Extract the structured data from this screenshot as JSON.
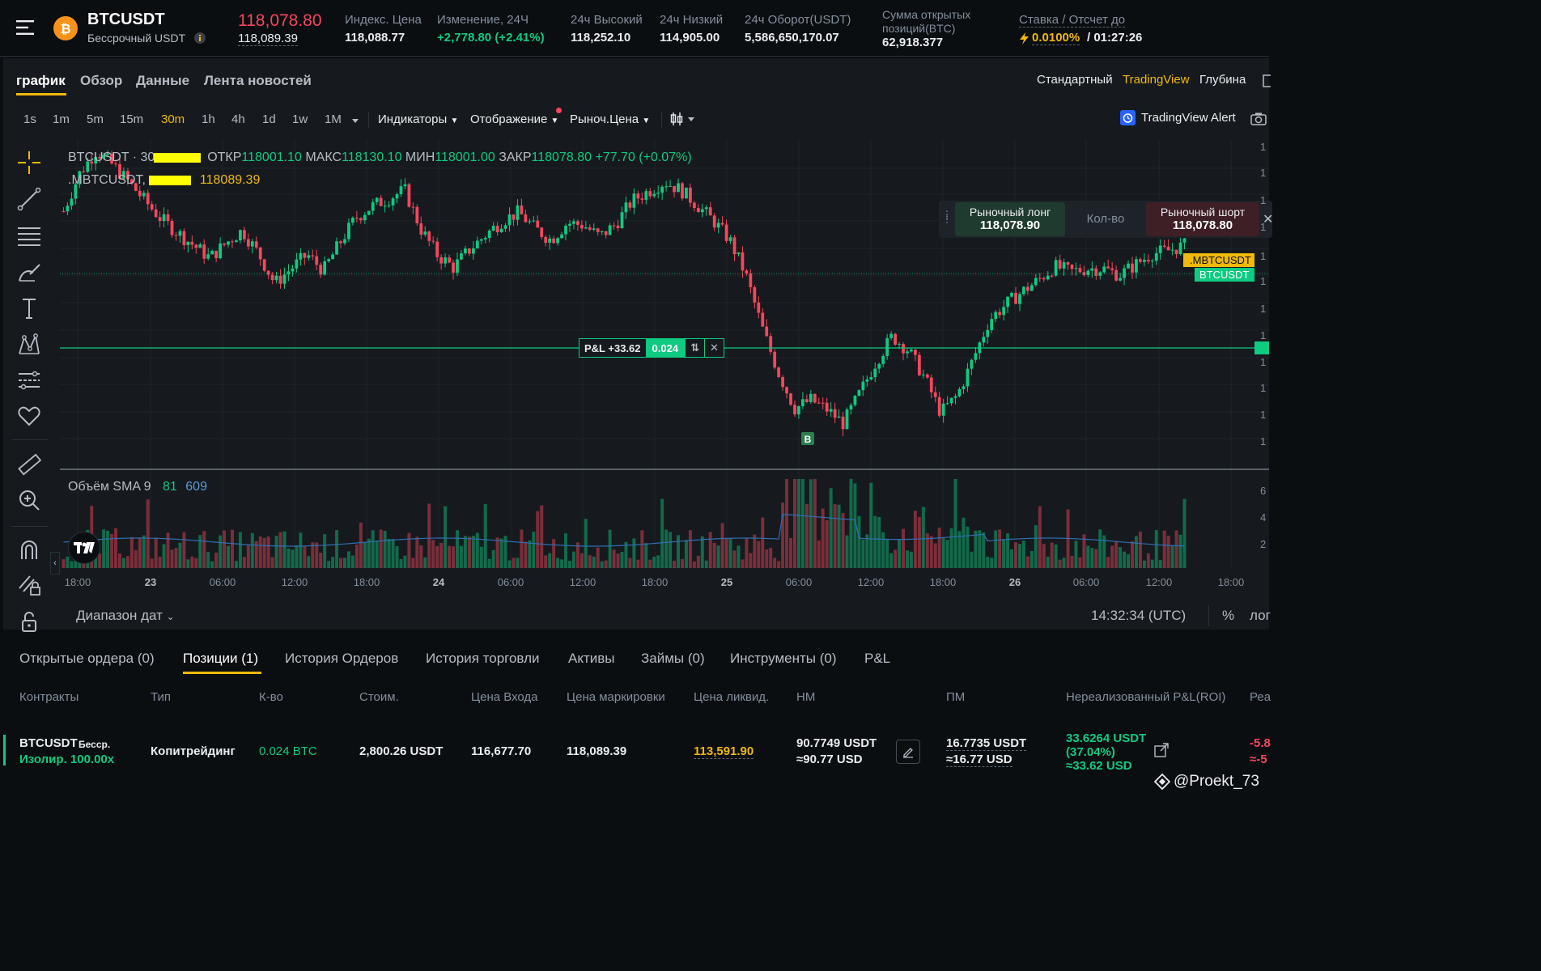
{
  "header": {
    "symbol": "BTCUSDT",
    "subtitle": "Бессрочный USDT",
    "info_icon": "info-icon",
    "last_price": "118,078.80",
    "mark_price": "118,089.39",
    "index_label": "Индекс. Цена",
    "index_value": "118,088.77",
    "change_label": "Изменение, 24Ч",
    "change_value": "+2,778.80 (+2.41%)",
    "high_label": "24ч Высокий",
    "high_value": "118,252.10",
    "low_label": "24ч Низкий",
    "low_value": "114,905.00",
    "turnover_label": "24ч Оборот(USDT)",
    "turnover_value": "5,586,650,170.07",
    "oi_label_1": "Сумма открытых",
    "oi_label_2": "позиций(BTC)",
    "oi_value": "62,918.377",
    "funding_label": "Ставка / Отсчет до",
    "funding_rate": "0.0100%",
    "funding_countdown": "/ 01:27:26"
  },
  "chart_tabs": [
    "график",
    "Обзор",
    "Данные",
    "Лента новостей"
  ],
  "views": [
    "Стандартный",
    "TradingView",
    "Глубина"
  ],
  "timeframes": [
    "1s",
    "1m",
    "5m",
    "15m",
    "30m",
    "1h",
    "4h",
    "1d",
    "1w",
    "1M"
  ],
  "toolbar": {
    "indicators": "Индикаторы",
    "display": "Отображение",
    "market_price": "Рыноч.Цена",
    "tv_alert": "TradingView Alert"
  },
  "legend": {
    "symbol": "BTCUSDT · 30",
    "open_label": "ОТКР",
    "open": "118001.10",
    "high_label": "МАКС",
    "high": "118130.10",
    "low_label": "МИН",
    "low": "118001.00",
    "close_label": "ЗАКР",
    "close": "118078.80",
    "change": "+77.70 (+0.07%)",
    "mark_symbol": ".MBTCUSDT,",
    "mark_value": "118089.39",
    "volume_label": "Объём SMA 9",
    "volume_value": "81",
    "volume_sma": "609"
  },
  "trade_widget": {
    "long_label": "Рыночный лонг",
    "long_price": "118,078.90",
    "qty_label": "Кол-во",
    "short_label": "Рыночный шорт",
    "short_price": "118,078.80"
  },
  "price_tags": {
    "mark": ".MBTCUSDT",
    "last": "BTCUSDT"
  },
  "position_line": {
    "pnl": "P&L +33.62",
    "qty": "0.024"
  },
  "buy_marker": "B",
  "x_ticks": [
    "18:00",
    "23",
    "06:00",
    "12:00",
    "18:00",
    "24",
    "06:00",
    "12:00",
    "18:00",
    "25",
    "06:00",
    "12:00",
    "18:00",
    "26",
    "06:00",
    "12:00",
    "18:00"
  ],
  "date_range": "Диапазон дат",
  "clock": "14:32:34 (UTC)",
  "scale_percent": "%",
  "scale_log": "лог",
  "y_axis_partial": [
    "1",
    "1",
    "1",
    "1",
    "1",
    "1",
    "1",
    "1",
    "1",
    "1",
    "1",
    "1",
    "6",
    "4",
    "2"
  ],
  "bottom_tabs": [
    "Открытые ордера (0)",
    "Позиции (1)",
    "История Ордеров",
    "История торговли",
    "Активы",
    "Займы (0)",
    "Инструменты (0)",
    "P&L"
  ],
  "columns": [
    "Контракты",
    "Тип",
    "К-во",
    "Стоим.",
    "Цена Входа",
    "Цена маркировки",
    "Цена ликвид.",
    "НМ",
    "ПМ",
    "Нереализованный P&L(ROI)",
    "Реа"
  ],
  "position": {
    "symbol": "BTCUSDT",
    "perp": "Бесср.",
    "margin": "Изолир. 100.00x",
    "type": "Копитрейдинг",
    "qty": "0.024 BTC",
    "value": "2,800.26 USDT",
    "entry": "116,677.70",
    "mark": "118,089.39",
    "liq": "113,591.90",
    "im_1": "90.7749 USDT",
    "im_2": "≈90.77 USD",
    "mm_1": "16.7735 USDT",
    "mm_2": "≈16.77 USD",
    "pnl_1": "33.6264 USDT",
    "pnl_2": "(37.04%)",
    "pnl_3": "≈33.62 USD",
    "realized_1": "-5.8",
    "realized_2": "≈-5"
  },
  "watermark": "@Proekt_73",
  "colors": {
    "up": "#0ecb81",
    "down": "#f6465d",
    "accent": "#f0b90b",
    "panel": "#161a1e",
    "bg": "#0b0e11"
  },
  "chart_data": {
    "type": "candlestick",
    "timeframe": "30m",
    "x_ticks": [
      "18:00",
      "23",
      "06:00",
      "12:00",
      "18:00",
      "24",
      "06:00",
      "12:00",
      "18:00",
      "25",
      "06:00",
      "12:00",
      "18:00",
      "26",
      "06:00",
      "12:00",
      "18:00"
    ],
    "close_path": [
      118420,
      118780,
      118990,
      118860,
      118700,
      118520,
      118350,
      118220,
      118100,
      117980,
      118120,
      118240,
      118020,
      117740,
      117880,
      118010,
      117860,
      118120,
      118360,
      118470,
      118540,
      118620,
      118250,
      118010,
      117890,
      118060,
      118200,
      118330,
      118410,
      118260,
      118150,
      118310,
      118290,
      118180,
      118300,
      118520,
      118610,
      118700,
      118620,
      118480,
      118330,
      118150,
      117820,
      117320,
      116900,
      116560,
      116640,
      116550,
      116420,
      116700,
      117000,
      117240,
      117110,
      116850,
      116520,
      116680,
      117030,
      117400,
      117540,
      117660,
      117770,
      117900,
      117850,
      117880,
      117880,
      117820,
      117920,
      118020,
      118050,
      118100
    ],
    "last_price": 118078.8,
    "mark_price": 118089.39,
    "entry_price": 116677.7,
    "position_qty": 0.024,
    "volume_series": "Объём SMA 9",
    "volume_last": 81,
    "volume_sma": 609
  }
}
